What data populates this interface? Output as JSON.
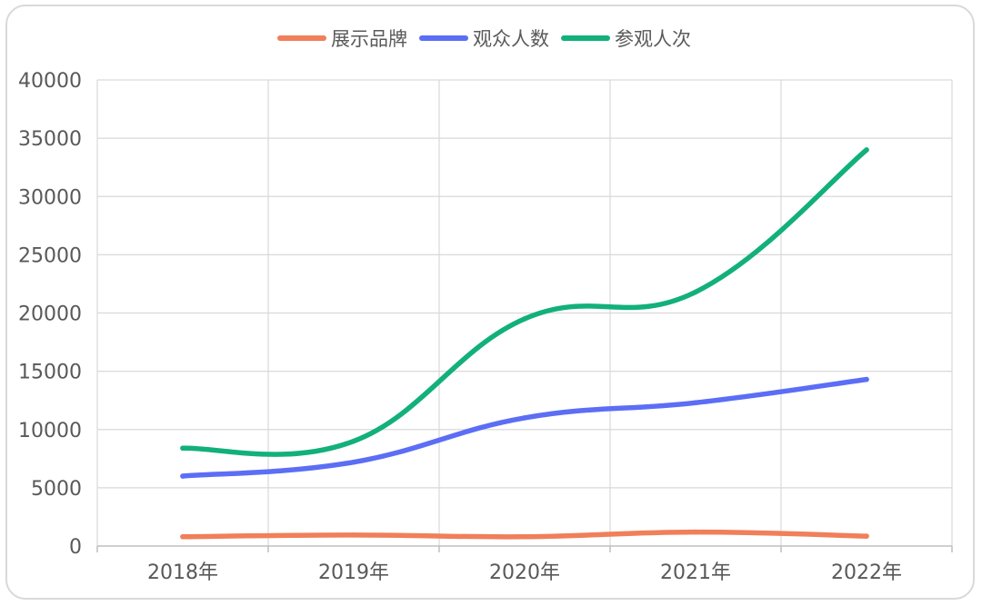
{
  "chart_data": {
    "type": "line",
    "categories": [
      "2018年",
      "2019年",
      "2020年",
      "2021年",
      "2022年"
    ],
    "series": [
      {
        "name": "展示品牌",
        "color": "#f07f5a",
        "values": [
          800,
          950,
          800,
          1200,
          850
        ]
      },
      {
        "name": "观众人数",
        "color": "#5b6ef5",
        "values": [
          6000,
          7200,
          11000,
          12300,
          14300
        ]
      },
      {
        "name": "参观人次",
        "color": "#12b07a",
        "values": [
          8400,
          9000,
          19500,
          21800,
          34000
        ]
      }
    ],
    "ylim": [
      0,
      40000
    ],
    "yticks": [
      0,
      5000,
      10000,
      15000,
      20000,
      25000,
      30000,
      35000,
      40000
    ],
    "grid": true,
    "smooth": true,
    "legend_position": "top-center"
  }
}
